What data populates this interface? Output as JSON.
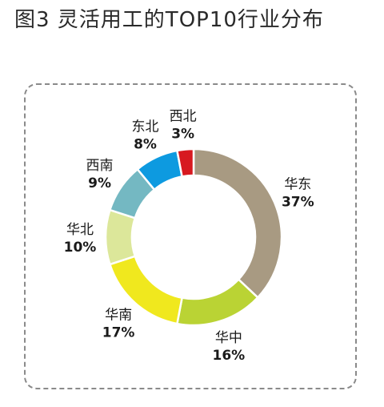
{
  "title": "图3  灵活用工的TOP10行业分布",
  "chart_data": {
    "type": "pie",
    "style": "donut",
    "series": [
      {
        "name": "华东",
        "value": 37,
        "label": "37%",
        "color": "#a89a82"
      },
      {
        "name": "华中",
        "value": 16,
        "label": "16%",
        "color": "#bad334"
      },
      {
        "name": "华南",
        "value": 17,
        "label": "17%",
        "color": "#f0e81e"
      },
      {
        "name": "华北",
        "value": 10,
        "label": "10%",
        "color": "#dce79a"
      },
      {
        "name": "西南",
        "value": 9,
        "label": "9%",
        "color": "#74b8c2"
      },
      {
        "name": "东北",
        "value": 8,
        "label": "8%",
        "color": "#0d9ae0"
      },
      {
        "name": "西北",
        "value": 3,
        "label": "3%",
        "color": "#d71920"
      }
    ]
  }
}
